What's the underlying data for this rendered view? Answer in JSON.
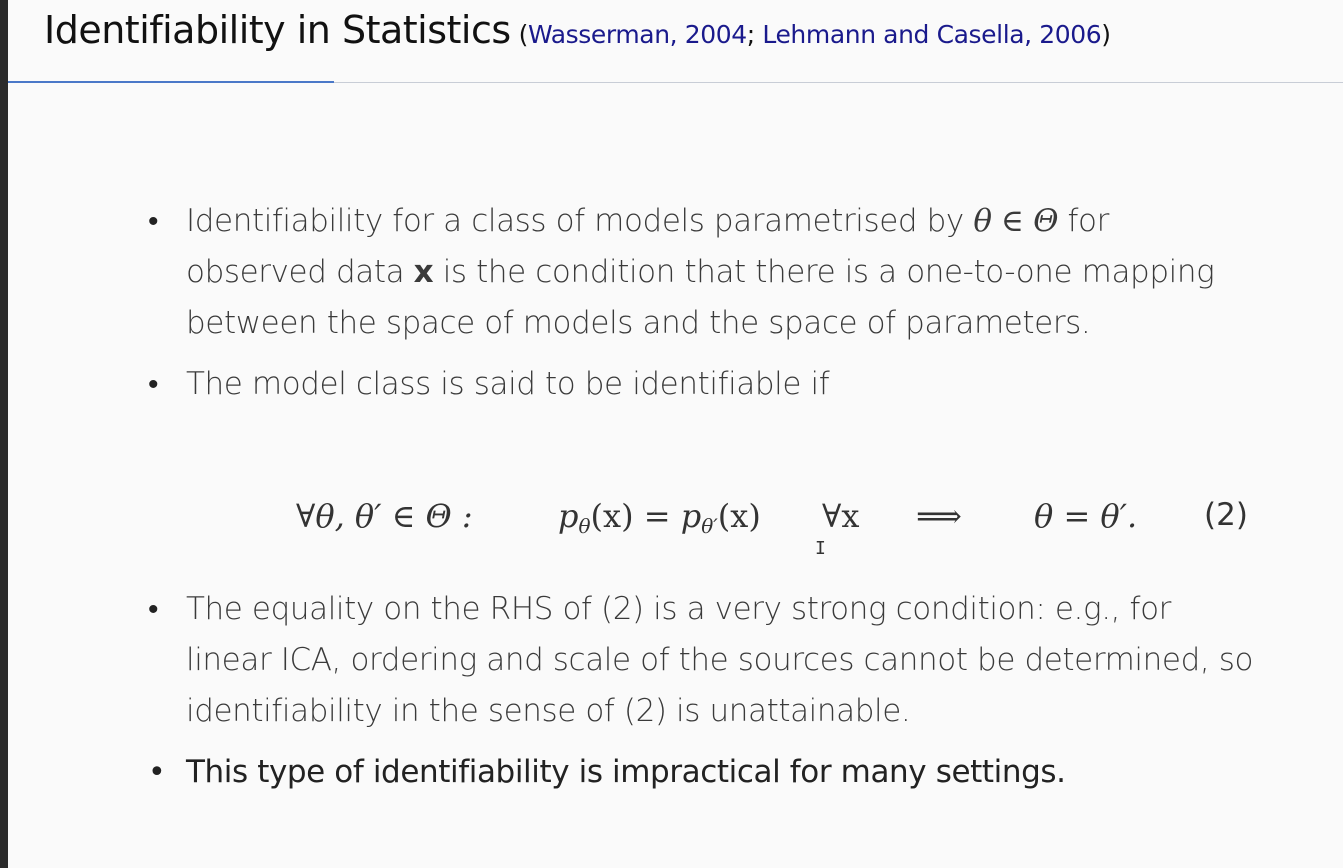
{
  "slide": {
    "title": "Identifiability in Statistics",
    "refs_open": "(",
    "ref1": "Wasserman, 2004",
    "ref_sep": "; ",
    "ref2": "Lehmann and Casella, 2006",
    "refs_close": ")"
  },
  "bullets": [
    {
      "t1": "Identifiability for a class of models parametrised by ",
      "m1": "θ ∈ Θ",
      "t2": " for observed data ",
      "m2": "x",
      "t3": " is the condition that there is a one-to-one mapping between the space of models and the space of parameters."
    },
    {
      "text": "The model class is said to be identifiable if"
    },
    {
      "text": "The equality on the RHS of (2) is a very strong condition: e.g., for linear ICA, ordering and scale of the sources cannot be determined, so identifiability in the sense of (2) is unattainable."
    },
    {
      "text": "This type of identifiability is impractical for many settings."
    }
  ],
  "equation": {
    "lhs": "∀θ, θ′ ∈ Θ :",
    "p1": "p",
    "p1_sub": "θ",
    "p1_arg": "(x) = ",
    "p2": "p",
    "p2_sub": "θ′",
    "p2_arg": "(x)",
    "forall": "∀x",
    "implies": "⟹",
    "rhs": "θ = θ′.",
    "number": "(2)"
  },
  "cursor": {
    "icon": "text-cursor-icon",
    "glyph": "I"
  }
}
